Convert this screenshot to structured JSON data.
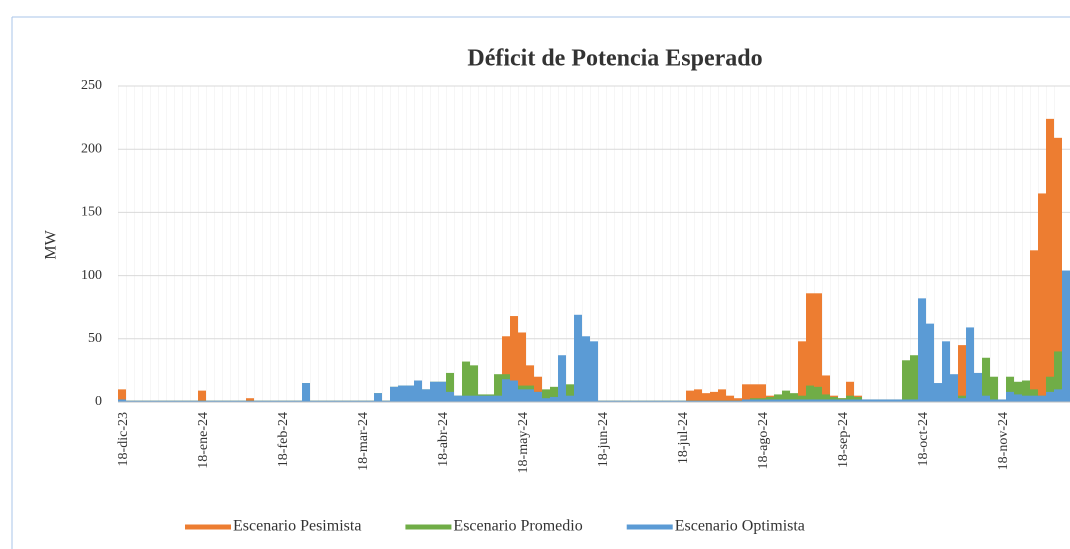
{
  "chart_data": {
    "type": "bar",
    "title": "Déficit de Potencia Esperado",
    "y_label": "MW",
    "categories": [
      "18-dic-23",
      null,
      null,
      null,
      null,
      null,
      null,
      null,
      null,
      null,
      "18-ene-24",
      null,
      null,
      null,
      null,
      null,
      null,
      null,
      null,
      null,
      "18-feb-24",
      null,
      null,
      null,
      null,
      null,
      null,
      null,
      null,
      null,
      "18-mar-24",
      null,
      null,
      null,
      null,
      null,
      null,
      null,
      null,
      null,
      "18-abr-24",
      null,
      null,
      null,
      null,
      null,
      null,
      null,
      null,
      null,
      "18-may-24",
      null,
      null,
      null,
      null,
      null,
      null,
      null,
      null,
      null,
      "18-jun-24",
      null,
      null,
      null,
      null,
      null,
      null,
      null,
      null,
      null,
      "18-jul-24",
      null,
      null,
      null,
      null,
      null,
      null,
      null,
      null,
      null,
      "18-ago-24",
      null,
      null,
      null,
      null,
      null,
      null,
      null,
      null,
      null,
      "18-sep-24",
      null,
      null,
      null,
      null,
      null,
      null,
      null,
      null,
      null,
      "18-oct-24",
      null,
      null,
      null,
      null,
      null,
      null,
      null,
      null,
      null,
      "18-nov-24",
      null,
      null,
      null,
      null,
      null,
      null,
      null,
      null
    ],
    "series": [
      {
        "name": "Escenario Pesimista",
        "color": "#ed7d31",
        "values": [
          10,
          1,
          1,
          1,
          1,
          1,
          1,
          1,
          1,
          1,
          9,
          1,
          1,
          1,
          1,
          1,
          3,
          1,
          1,
          1,
          1,
          1,
          1,
          1,
          1,
          1,
          1,
          1,
          1,
          1,
          1,
          1,
          1,
          1,
          1,
          1,
          1,
          1,
          1,
          1,
          1,
          1,
          1,
          1,
          1,
          1,
          1,
          1,
          52,
          68,
          55,
          29,
          20,
          5,
          3,
          3,
          3,
          3,
          3,
          12,
          1,
          1,
          1,
          1,
          1,
          1,
          1,
          1,
          1,
          1,
          1,
          9,
          10,
          7,
          8,
          10,
          5,
          3,
          14,
          14,
          14,
          5,
          4,
          4,
          5,
          48,
          86,
          86,
          21,
          5,
          3,
          16,
          5,
          2,
          2,
          2,
          2,
          2,
          2,
          2,
          2,
          2,
          2,
          2,
          2,
          45,
          5,
          5,
          5,
          2,
          2,
          2,
          2,
          2,
          120,
          165,
          224,
          209,
          33
        ]
      },
      {
        "name": "Escenario Promedio",
        "color": "#70ad47",
        "values": [
          2,
          1,
          1,
          1,
          1,
          1,
          1,
          1,
          1,
          1,
          1,
          1,
          1,
          1,
          1,
          1,
          1,
          1,
          1,
          1,
          1,
          1,
          1,
          15,
          1,
          1,
          1,
          1,
          1,
          1,
          1,
          1,
          7,
          1,
          12,
          13,
          13,
          17,
          10,
          16,
          16,
          23,
          5,
          32,
          29,
          6,
          6,
          22,
          22,
          17,
          13,
          13,
          8,
          10,
          12,
          10,
          14,
          10,
          5,
          5,
          1,
          1,
          1,
          1,
          1,
          1,
          1,
          1,
          1,
          1,
          1,
          1,
          1,
          1,
          1,
          1,
          1,
          1,
          2,
          3,
          3,
          4,
          6,
          9,
          7,
          5,
          13,
          12,
          6,
          4,
          3,
          5,
          4,
          2,
          2,
          2,
          2,
          2,
          33,
          37,
          57,
          30,
          10,
          8,
          5,
          5,
          8,
          10,
          35,
          20,
          1,
          20,
          16,
          17,
          10,
          5,
          20,
          40,
          33
        ]
      },
      {
        "name": "Escenario Optimista",
        "color": "#5b9bd5",
        "values": [
          2,
          1,
          1,
          1,
          1,
          1,
          1,
          1,
          1,
          1,
          1,
          1,
          1,
          1,
          1,
          1,
          1,
          1,
          1,
          1,
          1,
          1,
          1,
          15,
          1,
          1,
          1,
          1,
          1,
          1,
          1,
          1,
          7,
          1,
          12,
          13,
          13,
          17,
          10,
          16,
          16,
          8,
          5,
          5,
          5,
          5,
          5,
          5,
          18,
          17,
          10,
          10,
          8,
          3,
          4,
          37,
          5,
          69,
          52,
          48,
          1,
          1,
          1,
          1,
          1,
          1,
          1,
          1,
          1,
          1,
          1,
          1,
          1,
          1,
          1,
          1,
          1,
          1,
          2,
          2,
          2,
          2,
          2,
          2,
          2,
          2,
          2,
          2,
          2,
          2,
          2,
          2,
          2,
          2,
          2,
          2,
          2,
          2,
          2,
          2,
          82,
          62,
          15,
          48,
          22,
          3,
          59,
          23,
          5,
          2,
          2,
          8,
          6,
          5,
          5,
          5,
          8,
          10,
          104
        ]
      }
    ],
    "ylim": [
      0,
      250
    ],
    "yticks": [
      0,
      50,
      100,
      150,
      200,
      250
    ],
    "grid": true,
    "legend": "bottom"
  }
}
